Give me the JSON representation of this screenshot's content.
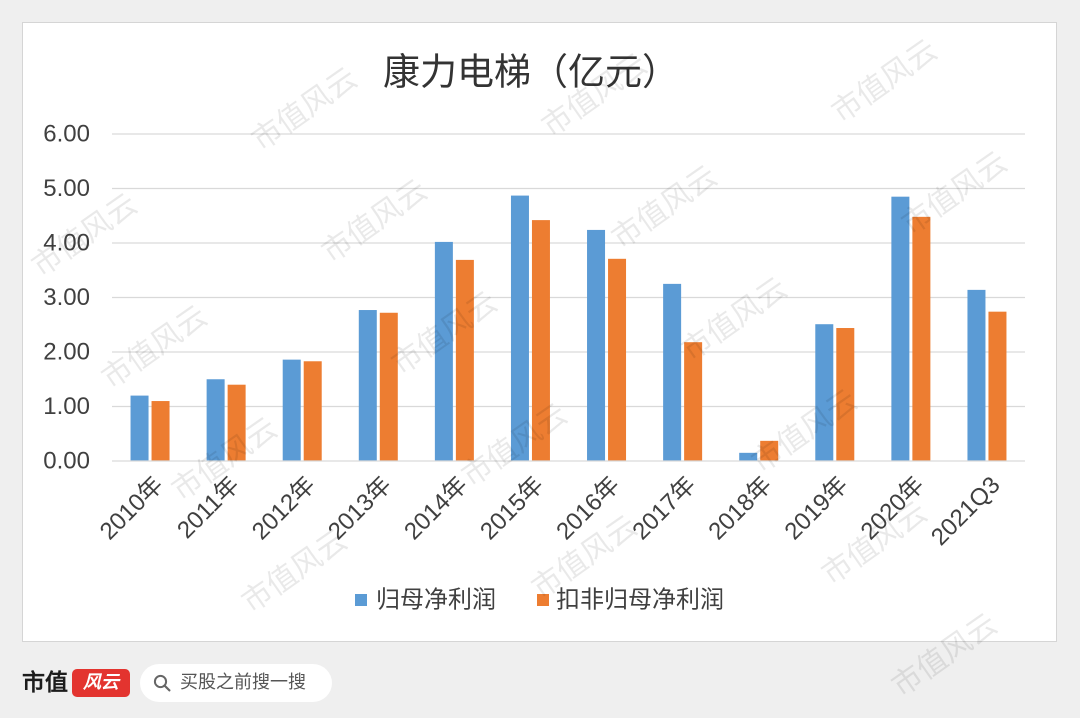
{
  "chart_data": {
    "type": "bar",
    "title": "康力电梯（亿元）",
    "categories": [
      "2010年",
      "2011年",
      "2012年",
      "2013年",
      "2014年",
      "2015年",
      "2016年",
      "2017年",
      "2018年",
      "2019年",
      "2020年",
      "2021Q3"
    ],
    "series": [
      {
        "name": "归母净利润",
        "color": "#5b9bd5",
        "values": [
          1.2,
          1.5,
          1.86,
          2.77,
          4.02,
          4.87,
          4.24,
          3.25,
          0.15,
          2.51,
          4.85,
          3.14
        ]
      },
      {
        "name": "扣非归母净利润",
        "color": "#ed7d31",
        "values": [
          1.1,
          1.4,
          1.83,
          2.72,
          3.69,
          4.42,
          3.71,
          2.18,
          0.37,
          2.44,
          4.48,
          2.74
        ]
      }
    ],
    "ylim": [
      0,
      6
    ],
    "yticks": [
      "0.00",
      "1.00",
      "2.00",
      "3.00",
      "4.00",
      "5.00",
      "6.00"
    ],
    "grid": true,
    "legend_position": "bottom"
  },
  "footer": {
    "brand_text": "市值",
    "brand_logo_text": "风云",
    "brand_color": "#e3342f",
    "search_icon": "search-icon",
    "search_placeholder": "买股之前搜一搜"
  },
  "watermark_text": "市值风云"
}
